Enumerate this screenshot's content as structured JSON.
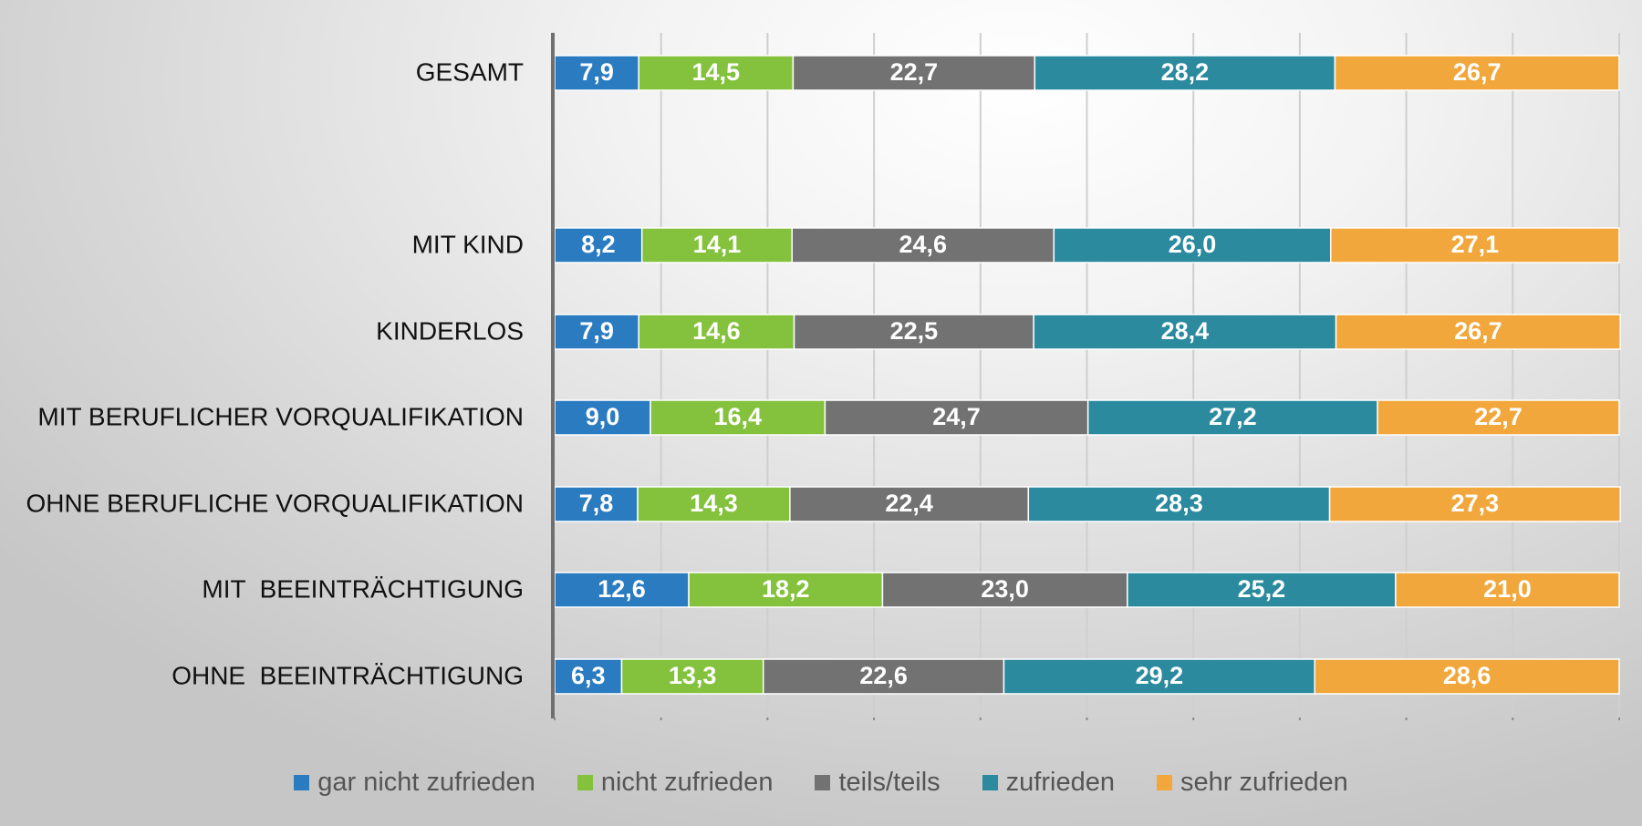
{
  "chart_data": {
    "type": "bar",
    "orientation": "horizontal",
    "stacked": true,
    "categories": [
      "GESAMT",
      "",
      "MIT KIND",
      "KINDERLOS",
      "MIT BERUFLICHER VORQUALIFIKATION",
      "OHNE BERUFLICHE VORQUALIFIKATION",
      "MIT  BEEINTRÄCHTIGUNG",
      "OHNE  BEEINTRÄCHTIGUNG"
    ],
    "series": [
      {
        "name": "gar nicht zufrieden",
        "color": "#2b7bc0",
        "values": [
          7.9,
          null,
          8.2,
          7.9,
          9.0,
          7.8,
          12.6,
          6.3
        ],
        "labels": [
          "7,9",
          "",
          "8,2",
          "7,9",
          "9,0",
          "7,8",
          "12,6",
          "6,3"
        ]
      },
      {
        "name": "nicht zufrieden",
        "color": "#84c23d",
        "values": [
          14.5,
          null,
          14.1,
          14.6,
          16.4,
          14.3,
          18.2,
          13.3
        ],
        "labels": [
          "14,5",
          "",
          "14,1",
          "14,6",
          "16,4",
          "14,3",
          "18,2",
          "13,3"
        ]
      },
      {
        "name": "teils/teils",
        "color": "#727272",
        "values": [
          22.7,
          null,
          24.6,
          22.5,
          24.7,
          22.4,
          23.0,
          22.6
        ],
        "labels": [
          "22,7",
          "",
          "24,6",
          "22,5",
          "24,7",
          "22,4",
          "23,0",
          "22,6"
        ]
      },
      {
        "name": "zufrieden",
        "color": "#2b8a9e",
        "values": [
          28.2,
          null,
          26.0,
          28.4,
          27.2,
          28.3,
          25.2,
          29.2
        ],
        "labels": [
          "28,2",
          "",
          "26,0",
          "28,4",
          "27,2",
          "28,3",
          "25,2",
          "29,2"
        ]
      },
      {
        "name": "sehr zufrieden",
        "color": "#f1a73c",
        "values": [
          26.7,
          null,
          27.1,
          26.7,
          22.7,
          27.3,
          21.0,
          28.6
        ],
        "labels": [
          "26,7",
          "",
          "27,1",
          "26,7",
          "22,7",
          "27,3",
          "21,0",
          "28,6"
        ]
      }
    ],
    "xlim": [
      0,
      100
    ],
    "grid": true,
    "legend_position": "bottom",
    "title": "",
    "xlabel": "",
    "ylabel": ""
  }
}
